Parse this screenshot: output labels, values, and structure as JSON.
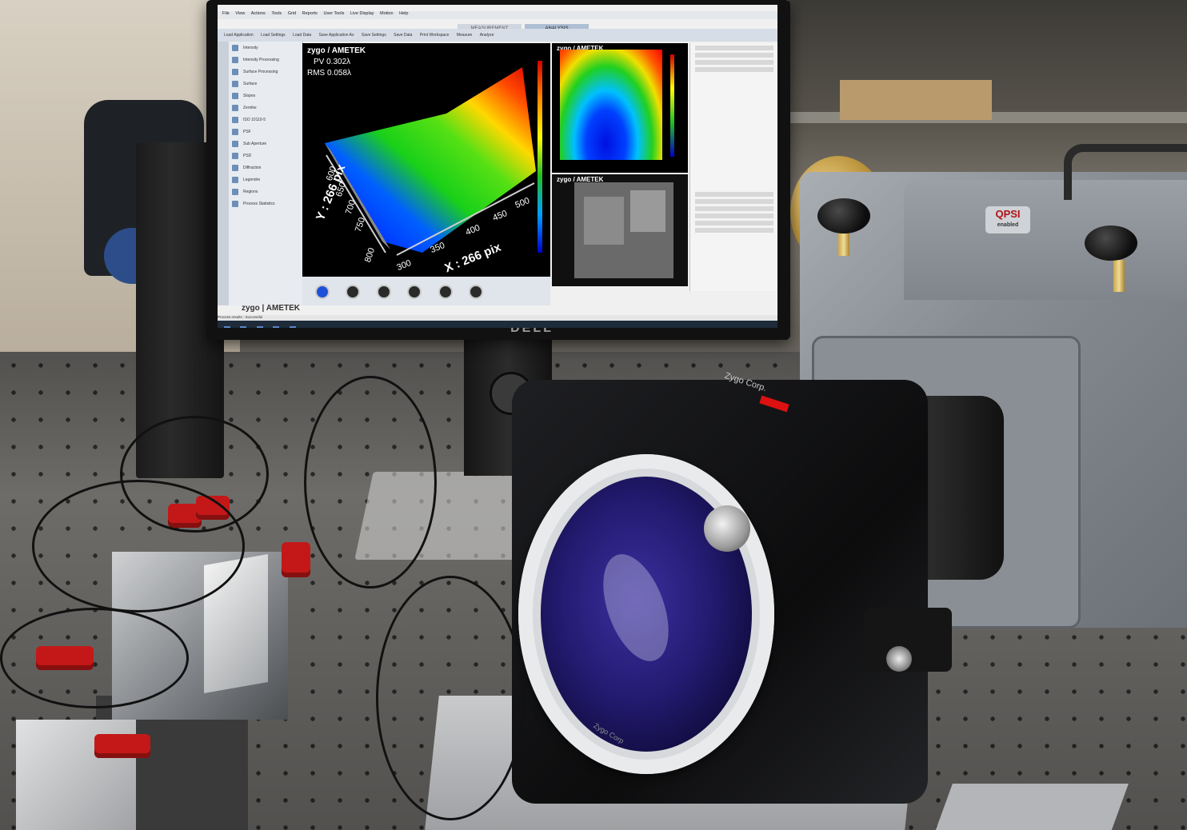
{
  "monitor": {
    "brand": "DELL",
    "app": {
      "menu": [
        "File",
        "View",
        "Actions",
        "Tools",
        "Grid",
        "Reports",
        "User Tools",
        "Live Display",
        "Motion",
        "Help"
      ],
      "tabs": [
        "MEASUREMENT",
        "ANALYSIS"
      ],
      "active_tab": "ANALYSIS",
      "toolbar": [
        "Load Application",
        "Load Settings",
        "Load Data",
        "Save Application As",
        "Save Settings",
        "Save Data",
        "Print Workspace",
        "Measure",
        "Analyze"
      ],
      "left_panel": {
        "items": [
          "Intensity",
          "Intensity Processing",
          "Surface Processing",
          "Surface",
          "Slopes",
          "Zernike",
          "ISO 10110-5",
          "PSF",
          "Sub Aperture",
          "PSD",
          "Diffraction",
          "Legendre",
          "Regions",
          "Process Statistics"
        ],
        "brand": "zygo | AMETEK"
      },
      "plot_3d": {
        "brand": "zygo / AMETEK",
        "pv": "PV 0.302λ",
        "rms": "RMS 0.058λ",
        "y_axis_label": "Y : 266 pix",
        "x_axis_label": "X : 266 pix",
        "y_ticks": [
          "600",
          "650",
          "700",
          "750",
          "800"
        ],
        "x_ticks": [
          "300",
          "350",
          "400",
          "450",
          "500"
        ]
      },
      "plot_top_right": {
        "brand": "zygo / AMETEK"
      },
      "plot_bottom_right": {
        "brand": "zygo / AMETEK"
      },
      "status_text": "Process results : Successful"
    }
  },
  "instrument": {
    "badge": "QPSI",
    "badge_sub": "enabled",
    "lens_text": "Zygo Corp.",
    "lens_brand": "Zygo Corp",
    "colors": {
      "accent_red": "#c41818",
      "lens_blue": "#241b72"
    }
  }
}
